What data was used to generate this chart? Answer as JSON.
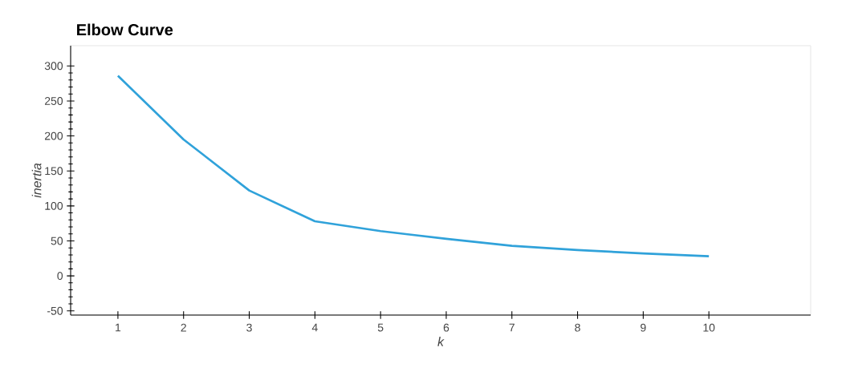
{
  "chart_data": {
    "type": "line",
    "title": "Elbow Curve",
    "xlabel": "k",
    "ylabel": "inertia",
    "x": [
      1,
      2,
      3,
      4,
      5,
      6,
      7,
      8,
      9,
      10
    ],
    "series": [
      {
        "color": "#30a2da",
        "values": [
          286,
          195,
          122,
          78,
          64,
          53,
          43,
          37,
          32,
          28
        ]
      }
    ],
    "xlim": [
      0.28,
      11.55
    ],
    "ylim": [
      -56,
      329
    ],
    "xticks": [
      1,
      2,
      3,
      4,
      5,
      6,
      7,
      8,
      9,
      10
    ],
    "yticks": [
      -50,
      0,
      50,
      100,
      150,
      200,
      250,
      300
    ],
    "line_style": "solid"
  }
}
